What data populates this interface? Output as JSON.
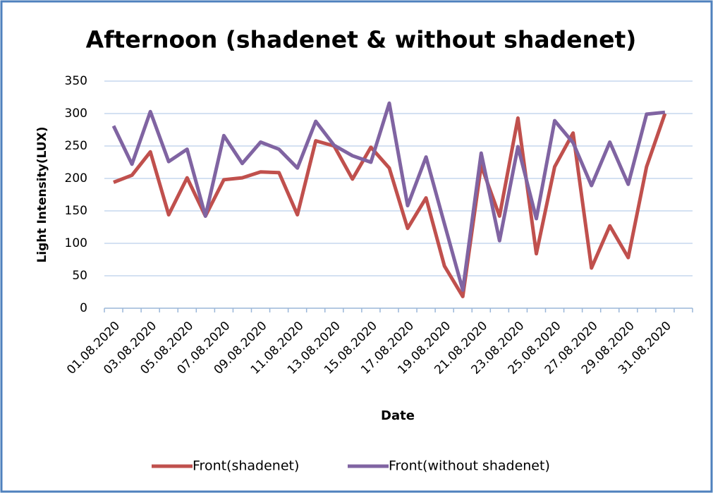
{
  "chart_data": {
    "type": "line",
    "title": "Afternoon (shadenet & without shadenet)",
    "x_label": "Date",
    "y_label": "Light Intensity(LUX)",
    "categories": [
      "01.08.2020",
      null,
      "03.08.2020",
      null,
      "05.08.2020",
      null,
      "07.08.2020",
      null,
      "09.08.2020",
      null,
      "11.08.2020",
      null,
      "13.08.2020",
      null,
      "15.08.2020",
      null,
      "17.08.2020",
      null,
      "19.08.2020",
      null,
      "21.08.2020",
      null,
      "23.08.2020",
      null,
      "25.08.2020",
      null,
      "27.08.2020",
      null,
      "29.08.2020",
      null,
      "31.08.2020",
      null
    ],
    "series": [
      {
        "name": "Front(shadenet)",
        "color": "#c0504d",
        "values": [
          194,
          205,
          241,
          144,
          201,
          142,
          198,
          201,
          210,
          209,
          144,
          258,
          250,
          199,
          248,
          216,
          123,
          170,
          65,
          18,
          220,
          142,
          293,
          84,
          218,
          270,
          62,
          127,
          78,
          218,
          300,
          null
        ]
      },
      {
        "name": "Front(without shadenet)",
        "color": "#8064a2",
        "values": [
          281,
          222,
          303,
          226,
          245,
          142,
          266,
          223,
          256,
          245,
          216,
          288,
          251,
          235,
          225,
          316,
          158,
          233,
          130,
          28,
          239,
          104,
          249,
          138,
          289,
          255,
          189,
          256,
          191,
          299,
          302,
          null
        ]
      }
    ],
    "ylim": [
      0,
      350
    ],
    "yticks": [
      0,
      50,
      100,
      150,
      200,
      250,
      300,
      350
    ],
    "grid": true,
    "legend": "bottom"
  }
}
